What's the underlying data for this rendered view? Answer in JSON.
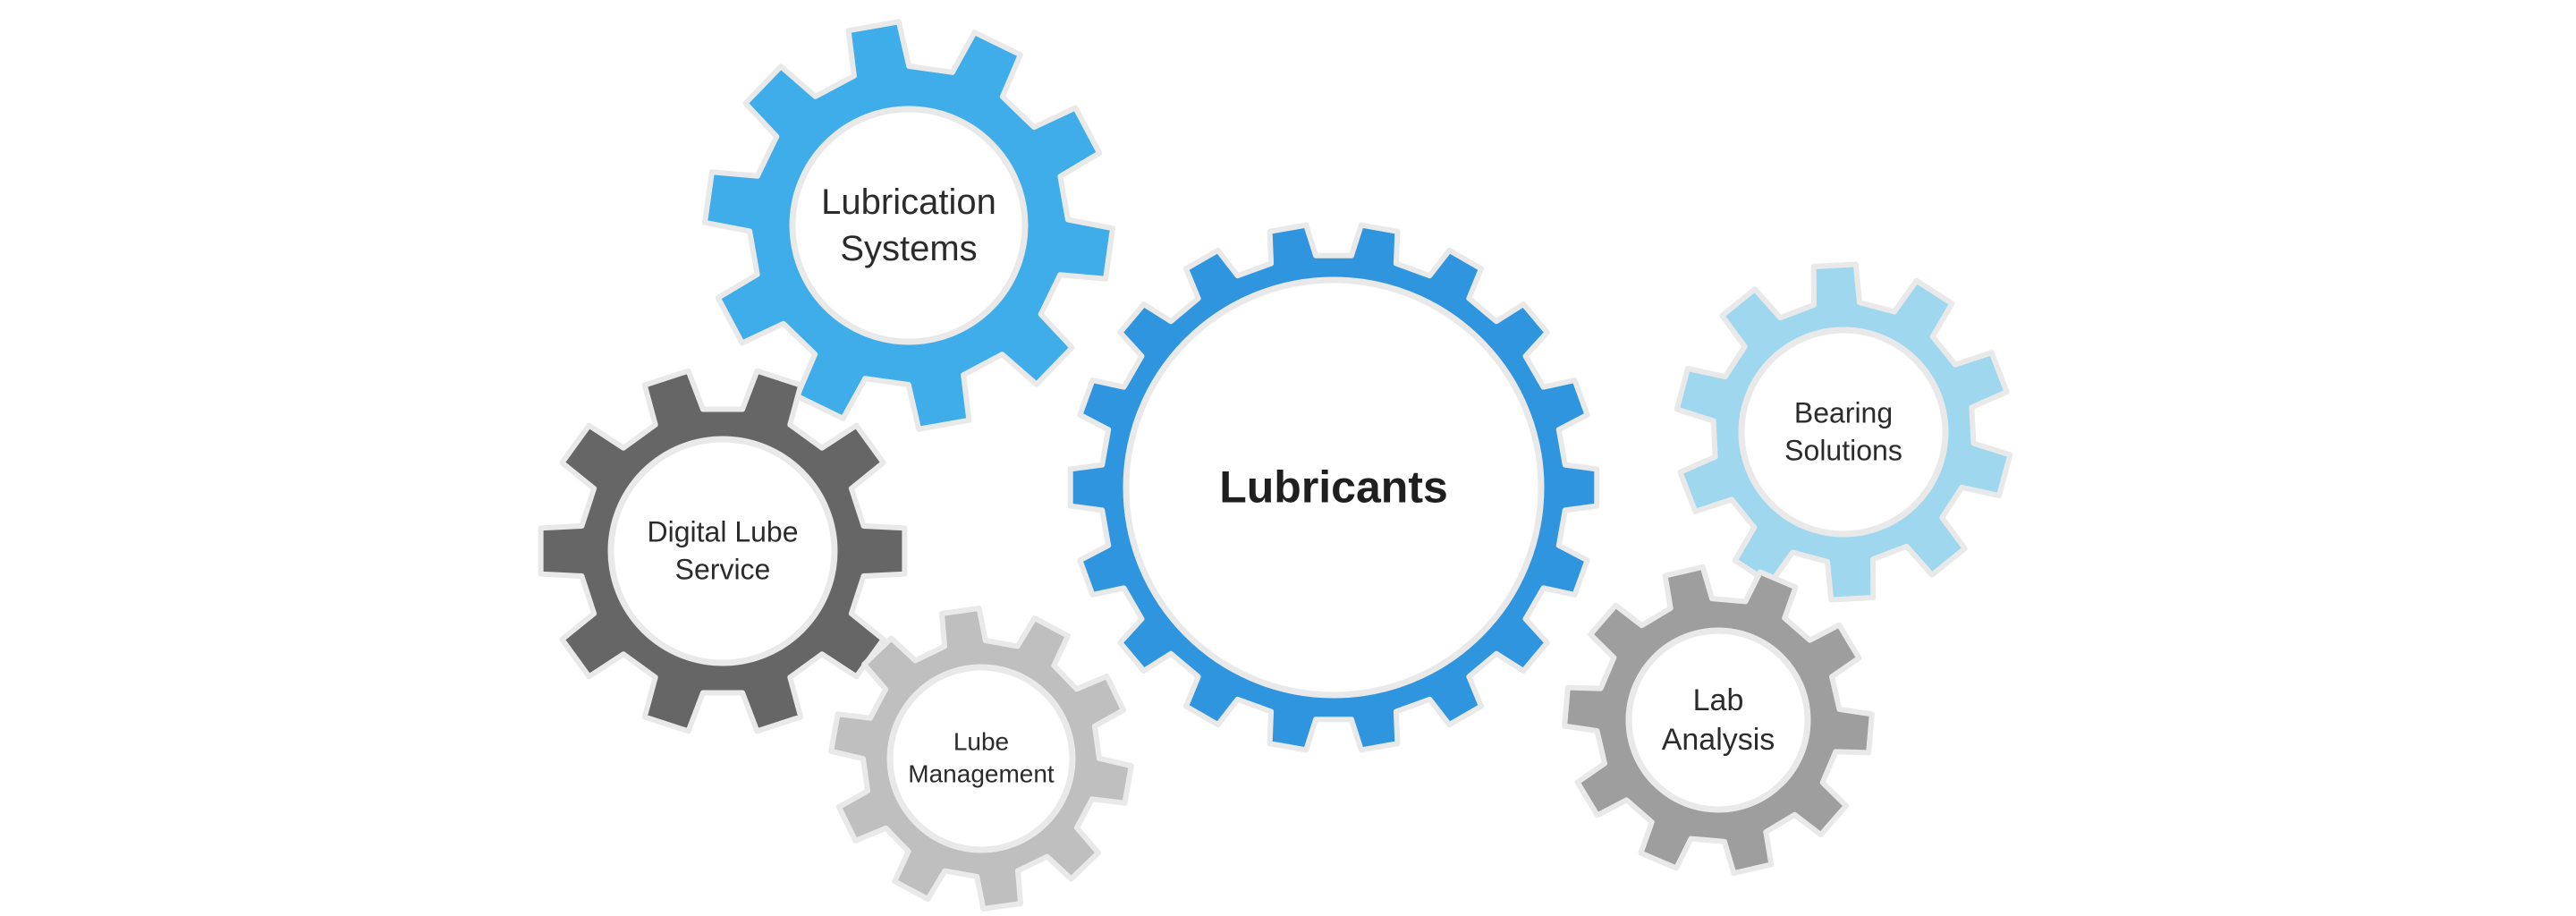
{
  "diagram": {
    "gears": [
      {
        "id": "lubricants",
        "lines": [
          "Lubricants"
        ],
        "color": "#2e95de",
        "teeth": 18
      },
      {
        "id": "lubrication-systems",
        "lines": [
          "Lubrication",
          "Systems"
        ],
        "color": "#3fadea",
        "teeth": 10
      },
      {
        "id": "digital-lube-service",
        "lines": [
          "Digital Lube",
          "Service"
        ],
        "color": "#666666",
        "teeth": 10
      },
      {
        "id": "lube-management",
        "lines": [
          "Lube",
          "Management"
        ],
        "color": "#bfbfbf",
        "teeth": 10
      },
      {
        "id": "bearing-solutions",
        "lines": [
          "Bearing",
          "Solutions"
        ],
        "color": "#9fd8ee",
        "teeth": 10
      },
      {
        "id": "lab-analysis",
        "lines": [
          "Lab",
          "Analysis"
        ],
        "color": "#9e9e9e",
        "teeth": 10
      }
    ],
    "outline_color": "#e9e9e9",
    "hub_fill": "#ffffff"
  }
}
